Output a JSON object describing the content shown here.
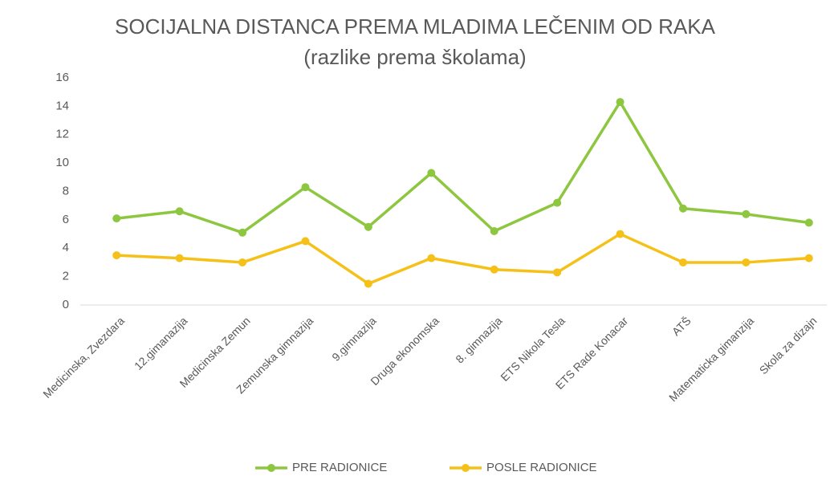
{
  "chart_data": {
    "type": "line",
    "title": "SOCIJALNA DISTANCA PREMA MLADIMA LEČENIM OD RAKA",
    "subtitle": "(razlike prema školama)",
    "categories": [
      "Medicinska, Zvezdara",
      "12.gimanazija",
      "Medicinska Zemun",
      "Zemunska gimnazija",
      "9.gimnazija",
      "Druga ekonomska",
      "8. gimnazija",
      "ETS Nikola Tesla",
      "ETS Rade Konacar",
      "ATŠ",
      "Matematicka gimanzija",
      "Skola za dizajn"
    ],
    "series": [
      {
        "name": "PRE RADIONICE",
        "color": "#8dc63f",
        "values": [
          6.1,
          6.6,
          5.1,
          8.3,
          5.5,
          9.3,
          5.2,
          7.2,
          14.3,
          6.8,
          6.4,
          5.8
        ]
      },
      {
        "name": "POSLE RADIONICE",
        "color": "#f5c118",
        "values": [
          3.5,
          3.3,
          3.0,
          4.5,
          1.5,
          3.3,
          2.5,
          2.3,
          5.0,
          3.0,
          3.0,
          3.3
        ]
      }
    ],
    "ylim": [
      0,
      16
    ],
    "yticks": [
      0,
      2,
      4,
      6,
      8,
      10,
      12,
      14,
      16
    ],
    "grid": false,
    "legend": "bottom"
  }
}
